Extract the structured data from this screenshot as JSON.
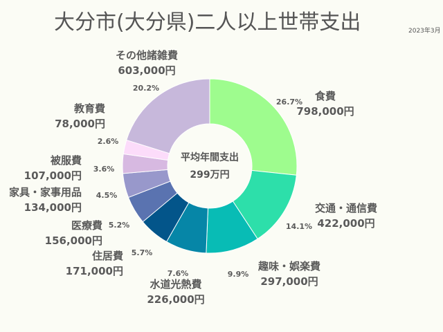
{
  "chart_data": {
    "type": "pie",
    "title": "大分市(大分県)二人以上世帯支出",
    "date": "2023年3月",
    "center_label": "平均年間支出",
    "center_value": "299万円",
    "slices": [
      {
        "label": "食費",
        "value_text": "798,000円",
        "percent": 26.7,
        "percent_text": "26.7%",
        "color": "#9efc8e"
      },
      {
        "label": "交通・通信費",
        "value_text": "422,000円",
        "percent": 14.1,
        "percent_text": "14.1%",
        "color": "#2ddfaa"
      },
      {
        "label": "趣味・娯楽費",
        "value_text": "297,000円",
        "percent": 9.9,
        "percent_text": "9.9%",
        "color": "#08bcb5"
      },
      {
        "label": "水道光熱費",
        "value_text": "226,000円",
        "percent": 7.6,
        "percent_text": "7.6%",
        "color": "#0686a7"
      },
      {
        "label": "住居費",
        "value_text": "171,000円",
        "percent": 5.7,
        "percent_text": "5.7%",
        "color": "#03558a"
      },
      {
        "label": "医療費",
        "value_text": "156,000円",
        "percent": 5.2,
        "percent_text": "5.2%",
        "color": "#5a73b0"
      },
      {
        "label": "家具・家事用品",
        "value_text": "134,000円",
        "percent": 4.5,
        "percent_text": "4.5%",
        "color": "#9898cb"
      },
      {
        "label": "被服費",
        "value_text": "107,000円",
        "percent": 3.6,
        "percent_text": "3.6%",
        "color": "#d7b9e1"
      },
      {
        "label": "教育費",
        "value_text": "78,000円",
        "percent": 2.6,
        "percent_text": "2.6%",
        "color": "#fcdcfa"
      },
      {
        "label": "その他諸雑費",
        "value_text": "603,000円",
        "percent": 20.2,
        "percent_text": "20.2%",
        "color": "#c7b8db"
      }
    ]
  }
}
